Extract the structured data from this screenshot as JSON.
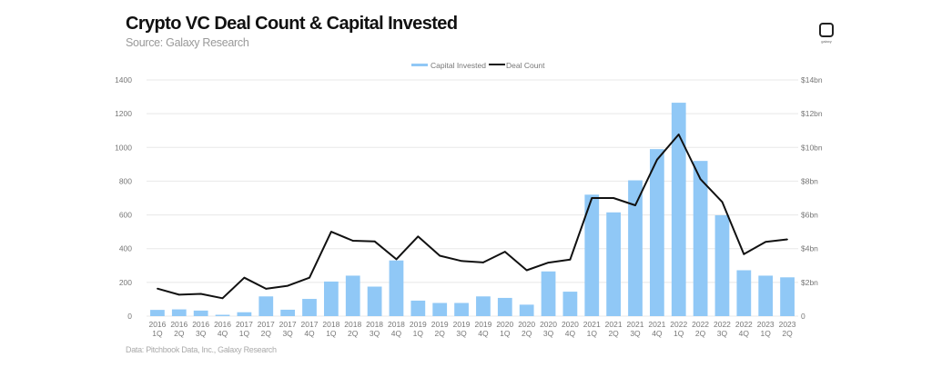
{
  "header": {
    "title": "Crypto VC Deal Count & Capital Invested",
    "subtitle": "Source: Galaxy Research",
    "logo_text": "galaxy"
  },
  "footer": {
    "note": "Data: Pitchbook Data, Inc., Galaxy Research"
  },
  "colors": {
    "bar": "#90c8f6",
    "line": "#111111",
    "grid": "#e8e8e8"
  },
  "chart_data": {
    "type": "bar+line",
    "title": "Crypto VC Deal Count & Capital Invested",
    "legend": {
      "placement": "top-center",
      "entries": [
        "Capital Invested",
        "Deal Count"
      ]
    },
    "categories": [
      [
        "2016",
        "1Q"
      ],
      [
        "2016",
        "2Q"
      ],
      [
        "2016",
        "3Q"
      ],
      [
        "2016",
        "4Q"
      ],
      [
        "2017",
        "1Q"
      ],
      [
        "2017",
        "2Q"
      ],
      [
        "2017",
        "3Q"
      ],
      [
        "2017",
        "4Q"
      ],
      [
        "2018",
        "1Q"
      ],
      [
        "2018",
        "2Q"
      ],
      [
        "2018",
        "3Q"
      ],
      [
        "2018",
        "4Q"
      ],
      [
        "2019",
        "1Q"
      ],
      [
        "2019",
        "2Q"
      ],
      [
        "2019",
        "3Q"
      ],
      [
        "2019",
        "4Q"
      ],
      [
        "2020",
        "1Q"
      ],
      [
        "2020",
        "2Q"
      ],
      [
        "2020",
        "3Q"
      ],
      [
        "2020",
        "4Q"
      ],
      [
        "2021",
        "1Q"
      ],
      [
        "2021",
        "2Q"
      ],
      [
        "2021",
        "3Q"
      ],
      [
        "2021",
        "4Q"
      ],
      [
        "2022",
        "1Q"
      ],
      [
        "2022",
        "2Q"
      ],
      [
        "2022",
        "3Q"
      ],
      [
        "2022",
        "4Q"
      ],
      [
        "2023",
        "1Q"
      ],
      [
        "2023",
        "2Q"
      ]
    ],
    "series": [
      {
        "name": "Capital Invested",
        "type": "bar",
        "axis": "right",
        "unit": "$bn",
        "values": [
          0.37,
          0.4,
          0.33,
          0.08,
          0.23,
          1.17,
          0.38,
          1.02,
          2.05,
          2.4,
          1.75,
          3.3,
          0.92,
          0.78,
          0.78,
          1.17,
          1.08,
          0.68,
          2.65,
          1.45,
          7.2,
          6.15,
          8.05,
          9.9,
          12.65,
          9.2,
          5.98,
          2.72,
          2.4,
          2.3
        ]
      },
      {
        "name": "Deal Count",
        "type": "line",
        "axis": "left",
        "values": [
          163,
          127,
          132,
          106,
          228,
          162,
          180,
          228,
          500,
          447,
          443,
          337,
          472,
          358,
          327,
          318,
          382,
          272,
          317,
          335,
          700,
          700,
          657,
          927,
          1077,
          812,
          677,
          367,
          440,
          455
        ]
      }
    ],
    "left_axis": {
      "ylim": [
        0,
        1400
      ],
      "ticks": [
        "0",
        "200",
        "400",
        "600",
        "800",
        "1000",
        "1200",
        "1400"
      ]
    },
    "right_axis": {
      "ylim": [
        0,
        14
      ],
      "ticks": [
        "0",
        "$2bn",
        "$4bn",
        "$6bn",
        "$8bn",
        "$10bn",
        "$12bn",
        "$14bn"
      ]
    },
    "grid": true
  }
}
